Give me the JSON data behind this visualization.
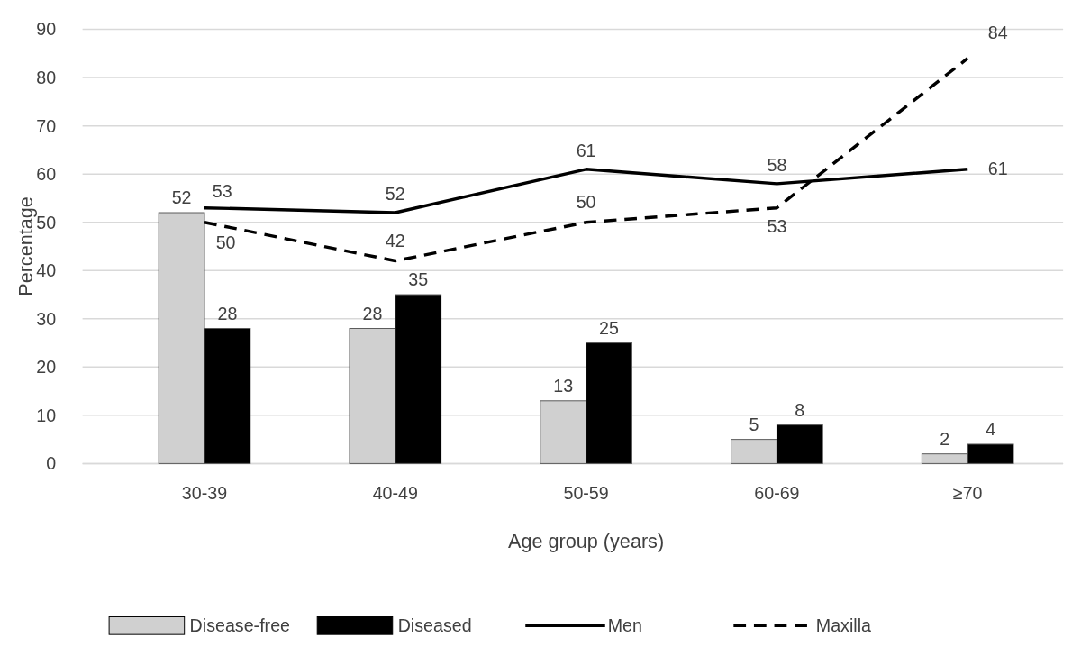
{
  "chart_data": {
    "type": "bar",
    "xlabel": "Age group (years)",
    "ylabel": "Percentage",
    "categories": [
      "30-39",
      "40-49",
      "50-59",
      "60-69",
      "≥70"
    ],
    "series": [
      {
        "name": "Disease-free",
        "color": "#d0d0d0",
        "values": [
          52,
          28,
          13,
          5,
          2
        ]
      },
      {
        "name": "Diseased",
        "color": "#000000",
        "values": [
          28,
          35,
          25,
          8,
          4
        ]
      },
      {
        "name": "Men",
        "type": "line",
        "color": "#000000",
        "line_style": "solid",
        "values": [
          53,
          52,
          61,
          58,
          61
        ]
      },
      {
        "name": "Maxilla",
        "type": "line",
        "color": "#000000",
        "line_style": "dashed",
        "values": [
          50,
          42,
          50,
          53,
          84
        ]
      }
    ],
    "ylim": [
      0,
      90
    ],
    "yticks": [
      0,
      10,
      20,
      30,
      40,
      50,
      60,
      70,
      80,
      90
    ],
    "grid": "y",
    "legend": "bottom",
    "data_labels": true,
    "marker": "none"
  }
}
